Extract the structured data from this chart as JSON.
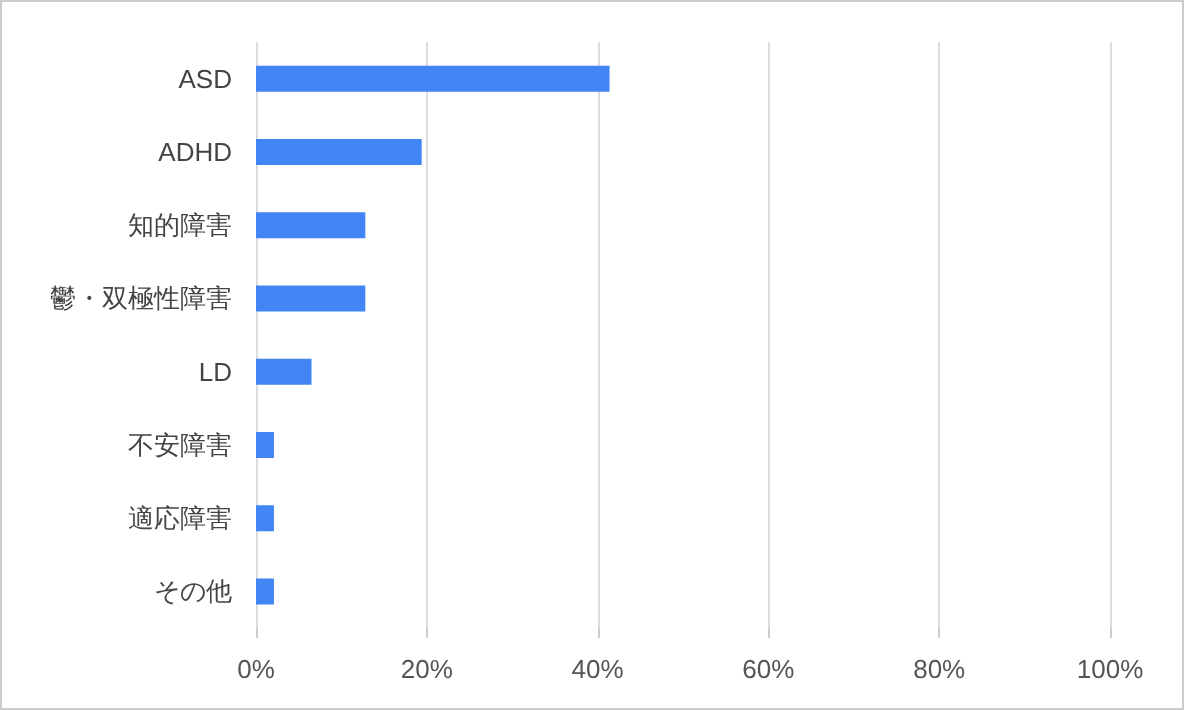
{
  "chart_data": {
    "type": "bar",
    "orientation": "horizontal",
    "categories": [
      "ASD",
      "ADHD",
      "知的障害",
      "鬱・双極性障害",
      "LD",
      "不安障害",
      "適応障害",
      "その他"
    ],
    "values": [
      41.4,
      19.4,
      12.8,
      12.8,
      6.5,
      2.1,
      2.1,
      2.1
    ],
    "color": "#4285f4",
    "xlim": [
      0,
      100
    ],
    "xticks": [
      {
        "value": 0,
        "label": "0%"
      },
      {
        "value": 20,
        "label": "20%"
      },
      {
        "value": 40,
        "label": "40%"
      },
      {
        "value": 60,
        "label": "60%"
      },
      {
        "value": 80,
        "label": "80%"
      },
      {
        "value": 100,
        "label": "100%"
      }
    ],
    "grid": "x"
  }
}
